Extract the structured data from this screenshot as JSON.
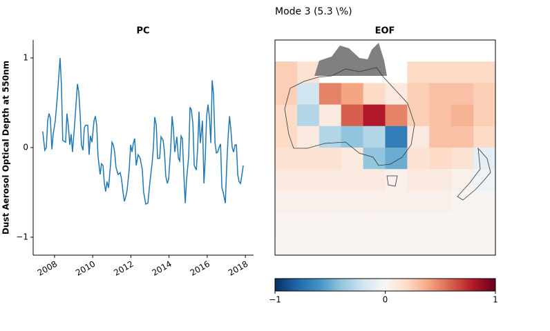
{
  "figure_title": "Mode 3 (5.3 \\%)",
  "chart_data": [
    {
      "type": "line",
      "title": "PC",
      "ylabel": "Dust Aerosol Optical Depth at 550nm",
      "color": "#1f77b4",
      "xlim": [
        2006.88,
        2018.43
      ],
      "xticks": [
        2008,
        2010,
        2012,
        2014,
        2016,
        2018
      ],
      "ylim": [
        -1.2,
        1.2
      ],
      "yticks": [
        {
          "value": -1,
          "label": "−1"
        },
        0,
        1
      ],
      "x": [
        2007.38,
        2007.49,
        2007.57,
        2007.64,
        2007.71,
        2007.78,
        2007.86,
        2007.93,
        2008.04,
        2008.14,
        2008.29,
        2008.36,
        2008.43,
        2008.58,
        2008.65,
        2008.72,
        2008.8,
        2008.87,
        2008.94,
        2009.05,
        2009.2,
        2009.27,
        2009.34,
        2009.41,
        2009.49,
        2009.56,
        2009.63,
        2009.74,
        2009.81,
        2009.88,
        2009.96,
        2010.07,
        2010.14,
        2010.21,
        2010.28,
        2010.39,
        2010.46,
        2010.54,
        2010.61,
        2010.68,
        2010.75,
        2010.83,
        2010.93,
        2011.01,
        2011.08,
        2011.15,
        2011.22,
        2011.33,
        2011.44,
        2011.51,
        2011.59,
        2011.66,
        2011.73,
        2011.8,
        2011.91,
        2011.99,
        2012.06,
        2012.13,
        2012.2,
        2012.28,
        2012.38,
        2012.49,
        2012.6,
        2012.67,
        2012.78,
        2012.89,
        2013.0,
        2013.11,
        2013.18,
        2013.25,
        2013.33,
        2013.4,
        2013.51,
        2013.58,
        2013.69,
        2013.76,
        2013.83,
        2013.91,
        2013.98,
        2014.09,
        2014.16,
        2014.23,
        2014.3,
        2014.41,
        2014.49,
        2014.56,
        2014.63,
        2014.7,
        2014.78,
        2014.85,
        2014.92,
        2015.03,
        2015.1,
        2015.17,
        2015.25,
        2015.32,
        2015.43,
        2015.5,
        2015.57,
        2015.64,
        2015.75,
        2015.83,
        2015.9,
        2015.97,
        2016.04,
        2016.12,
        2016.19,
        2016.26,
        2016.33,
        2016.41,
        2016.48,
        2016.55,
        2016.62,
        2016.7,
        2016.77,
        2016.84,
        2016.95,
        2017.02,
        2017.09,
        2017.17,
        2017.24,
        2017.31,
        2017.38,
        2017.46,
        2017.53,
        2017.6,
        2017.67,
        2017.75,
        2017.82,
        2017.89
      ],
      "values": [
        0.18,
        -0.03,
        0.0,
        0.3,
        0.38,
        0.33,
        -0.02,
        0.15,
        0.3,
        0.55,
        1.0,
        0.7,
        0.08,
        0.06,
        0.38,
        0.25,
        0.03,
        0.15,
        -0.05,
        0.25,
        0.71,
        0.62,
        0.38,
        0.03,
        -0.03,
        0.22,
        0.25,
        0.25,
        -0.08,
        0.13,
        0.06,
        0.3,
        0.35,
        0.25,
        -0.1,
        -0.3,
        -0.18,
        -0.2,
        -0.4,
        -0.49,
        -0.38,
        -0.45,
        -0.2,
        0.06,
        0.03,
        -0.05,
        -0.22,
        -0.3,
        -0.28,
        -0.35,
        -0.5,
        -0.6,
        -0.55,
        -0.48,
        -0.25,
        0.03,
        -0.05,
        0.05,
        0.1,
        -0.2,
        -0.08,
        -0.12,
        -0.25,
        -0.5,
        -0.63,
        -0.62,
        -0.38,
        -0.18,
        0.0,
        0.34,
        0.25,
        -0.12,
        -0.12,
        0.12,
        0.08,
        -0.05,
        -0.32,
        -0.4,
        -0.35,
        0.0,
        0.35,
        0.2,
        -0.05,
        0.12,
        -0.12,
        -0.15,
        0.13,
        0.1,
        -0.32,
        -0.62,
        -0.35,
        -0.1,
        0.45,
        0.42,
        0.27,
        -0.2,
        -0.25,
        0.0,
        0.4,
        0.05,
        0.3,
        -0.4,
        -0.1,
        0.35,
        0.48,
        0.33,
        0.05,
        0.75,
        0.6,
        0.05,
        -0.06,
        -0.05,
        0.0,
        0.04,
        -0.45,
        -0.5,
        -0.62,
        -0.22,
        0.1,
        0.35,
        0.2,
        0.0,
        -0.05,
        0.03,
        0.03,
        -0.3,
        -0.38,
        -0.4,
        -0.3,
        -0.2
      ]
    },
    {
      "type": "heatmap",
      "title": "EOF",
      "clim": [
        -1,
        1
      ],
      "cticks": [
        {
          "value": -1,
          "label": "−1"
        },
        0,
        1
      ],
      "colors": [
        "#053061",
        "#2166ac",
        "#4393c3",
        "#92c5de",
        "#d1e5f0",
        "#f7f7f7",
        "#fddbc7",
        "#f4a582",
        "#d6604d",
        "#b2182b",
        "#67001f"
      ],
      "values": [
        [
          null,
          null,
          null,
          null,
          null,
          null,
          null,
          null,
          null,
          null
        ],
        [
          0.25,
          0.15,
          null,
          null,
          null,
          null,
          0.2,
          0.2,
          0.2,
          0.2
        ],
        [
          0.25,
          -0.2,
          0.5,
          0.4,
          0.2,
          0.1,
          0.25,
          0.3,
          0.3,
          0.25
        ],
        [
          0.2,
          -0.3,
          0.1,
          0.6,
          0.8,
          0.5,
          0.25,
          0.3,
          0.35,
          0.25
        ],
        [
          0.2,
          0.1,
          -0.3,
          -0.4,
          -0.3,
          -0.7,
          0.1,
          0.3,
          0.3,
          0.2
        ],
        [
          0.15,
          0.15,
          0.15,
          0.1,
          -0.4,
          -0.5,
          0.15,
          0.2,
          0.15,
          -0.1
        ],
        [
          0.1,
          0.1,
          0.1,
          0.1,
          0.1,
          0.05,
          0.1,
          0.1,
          0.05,
          -0.05
        ],
        [
          0.05,
          0.05,
          0.05,
          0.05,
          0.05,
          0.05,
          0.05,
          0.05,
          0.03,
          0.02
        ],
        [
          0.03,
          0.03,
          0.03,
          0.02,
          0.03,
          0.02,
          0.02,
          0.02,
          0.02,
          0.02
        ],
        [
          0.02,
          0.02,
          0.02,
          0.02,
          0.02,
          0.02,
          0.02,
          0.02,
          0.02,
          0.02
        ]
      ]
    }
  ]
}
